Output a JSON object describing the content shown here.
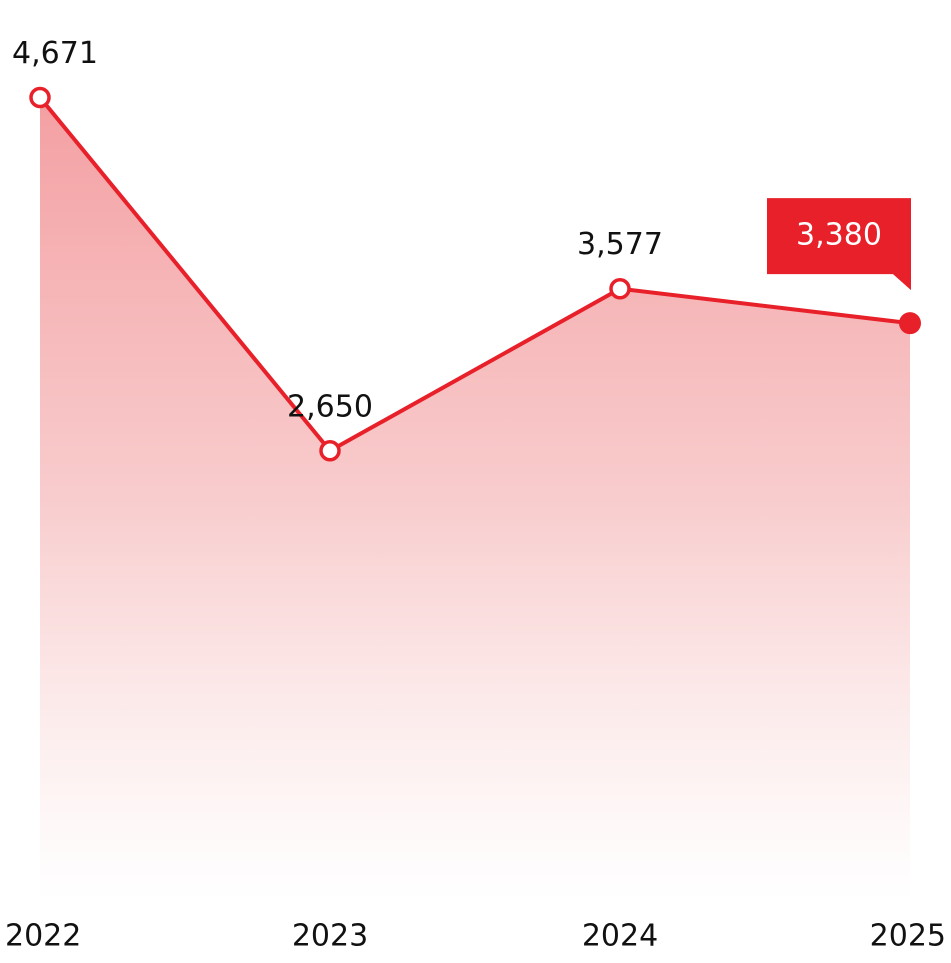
{
  "chart_data": {
    "type": "area",
    "categories": [
      "2022",
      "2023",
      "2024",
      "2025"
    ],
    "values": [
      4671,
      2650,
      3577,
      3380
    ],
    "value_labels": [
      "4,671",
      "2,650",
      "3,577",
      "3,380"
    ],
    "color": "#e8202a",
    "ylim": [
      0,
      5000
    ]
  }
}
